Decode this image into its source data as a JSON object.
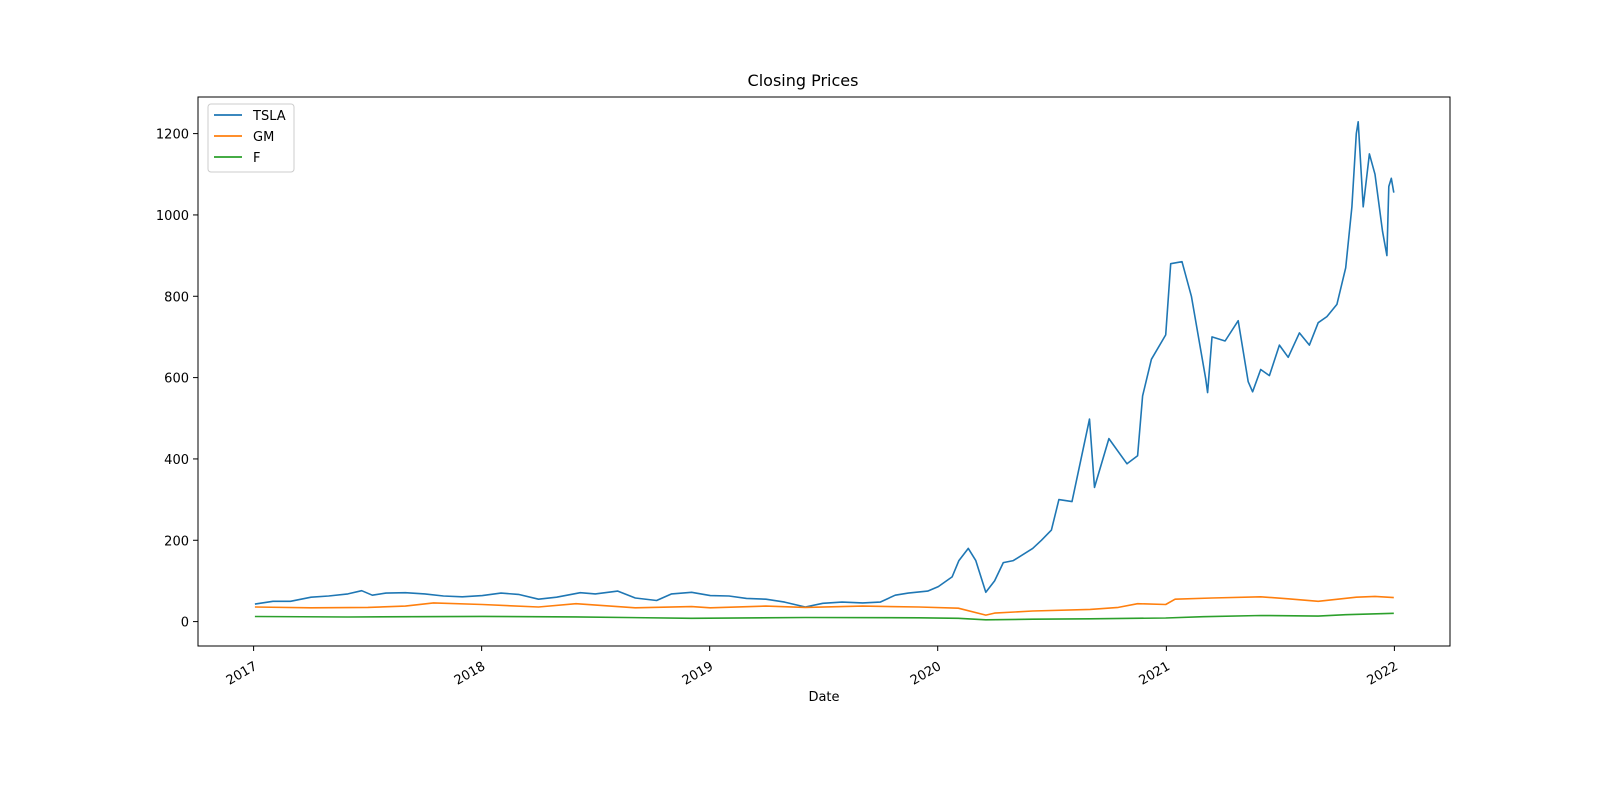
{
  "chart_data": {
    "type": "line",
    "title": "Closing Prices",
    "xlabel": "Date",
    "ylabel": "",
    "x_type": "date",
    "xlim": [
      "2016-10-04",
      "2022-03-31"
    ],
    "ylim": [
      -60,
      1290
    ],
    "x_ticks": [
      {
        "date": "2017-01-01",
        "label": "2017"
      },
      {
        "date": "2018-01-01",
        "label": "2018"
      },
      {
        "date": "2019-01-01",
        "label": "2019"
      },
      {
        "date": "2020-01-01",
        "label": "2020"
      },
      {
        "date": "2021-01-01",
        "label": "2021"
      },
      {
        "date": "2022-01-01",
        "label": "2022"
      }
    ],
    "y_ticks": [
      0,
      200,
      400,
      600,
      800,
      1000,
      1200
    ],
    "grid": false,
    "legend_position": "upper-left",
    "series": [
      {
        "name": "TSLA",
        "color": "#1f77b4",
        "points": [
          [
            "2017-01-03",
            43
          ],
          [
            "2017-02-01",
            50
          ],
          [
            "2017-03-01",
            50
          ],
          [
            "2017-04-03",
            60
          ],
          [
            "2017-05-01",
            63
          ],
          [
            "2017-06-01",
            68
          ],
          [
            "2017-06-23",
            76
          ],
          [
            "2017-07-10",
            65
          ],
          [
            "2017-08-01",
            70
          ],
          [
            "2017-09-01",
            71
          ],
          [
            "2017-10-02",
            68
          ],
          [
            "2017-11-01",
            63
          ],
          [
            "2017-12-01",
            61
          ],
          [
            "2018-01-02",
            64
          ],
          [
            "2018-02-01",
            70
          ],
          [
            "2018-03-01",
            67
          ],
          [
            "2018-04-02",
            55
          ],
          [
            "2018-05-01",
            60
          ],
          [
            "2018-06-08",
            71
          ],
          [
            "2018-07-02",
            68
          ],
          [
            "2018-08-07",
            75
          ],
          [
            "2018-09-04",
            58
          ],
          [
            "2018-10-08",
            52
          ],
          [
            "2018-11-01",
            68
          ],
          [
            "2018-12-03",
            72
          ],
          [
            "2019-01-02",
            64
          ],
          [
            "2019-02-01",
            63
          ],
          [
            "2019-03-01",
            57
          ],
          [
            "2019-04-01",
            55
          ],
          [
            "2019-05-01",
            48
          ],
          [
            "2019-06-03",
            36
          ],
          [
            "2019-07-01",
            45
          ],
          [
            "2019-08-01",
            48
          ],
          [
            "2019-09-03",
            46
          ],
          [
            "2019-10-01",
            48
          ],
          [
            "2019-10-25",
            65
          ],
          [
            "2019-11-15",
            70
          ],
          [
            "2019-12-16",
            75
          ],
          [
            "2020-01-02",
            86
          ],
          [
            "2020-01-24",
            110
          ],
          [
            "2020-02-04",
            150
          ],
          [
            "2020-02-19",
            180
          ],
          [
            "2020-03-02",
            150
          ],
          [
            "2020-03-18",
            72
          ],
          [
            "2020-04-01",
            100
          ],
          [
            "2020-04-15",
            145
          ],
          [
            "2020-05-01",
            150
          ],
          [
            "2020-06-01",
            180
          ],
          [
            "2020-06-15",
            200
          ],
          [
            "2020-07-01",
            225
          ],
          [
            "2020-07-13",
            300
          ],
          [
            "2020-08-03",
            295
          ],
          [
            "2020-08-31",
            498
          ],
          [
            "2020-09-08",
            330
          ],
          [
            "2020-10-01",
            450
          ],
          [
            "2020-10-30",
            388
          ],
          [
            "2020-11-16",
            408
          ],
          [
            "2020-11-24",
            555
          ],
          [
            "2020-12-08",
            645
          ],
          [
            "2020-12-31",
            705
          ],
          [
            "2021-01-08",
            880
          ],
          [
            "2021-01-26",
            885
          ],
          [
            "2021-02-10",
            800
          ],
          [
            "2021-03-05",
            597
          ],
          [
            "2021-03-08",
            563
          ],
          [
            "2021-03-15",
            700
          ],
          [
            "2021-04-05",
            690
          ],
          [
            "2021-04-26",
            740
          ],
          [
            "2021-05-12",
            590
          ],
          [
            "2021-05-19",
            565
          ],
          [
            "2021-06-01",
            620
          ],
          [
            "2021-06-15",
            605
          ],
          [
            "2021-07-01",
            680
          ],
          [
            "2021-07-15",
            650
          ],
          [
            "2021-08-02",
            710
          ],
          [
            "2021-08-18",
            680
          ],
          [
            "2021-09-01",
            735
          ],
          [
            "2021-09-15",
            750
          ],
          [
            "2021-10-01",
            780
          ],
          [
            "2021-10-15",
            870
          ],
          [
            "2021-10-25",
            1020
          ],
          [
            "2021-11-01",
            1200
          ],
          [
            "2021-11-04",
            1229
          ],
          [
            "2021-11-12",
            1020
          ],
          [
            "2021-11-22",
            1150
          ],
          [
            "2021-12-01",
            1100
          ],
          [
            "2021-12-13",
            960
          ],
          [
            "2021-12-20",
            900
          ],
          [
            "2021-12-23",
            1070
          ],
          [
            "2021-12-27",
            1090
          ],
          [
            "2021-12-31",
            1055
          ]
        ]
      },
      {
        "name": "GM",
        "color": "#ff7f0e",
        "points": [
          [
            "2017-01-03",
            36
          ],
          [
            "2017-04-03",
            34
          ],
          [
            "2017-07-03",
            35
          ],
          [
            "2017-09-01",
            38
          ],
          [
            "2017-10-16",
            46
          ],
          [
            "2018-01-02",
            42
          ],
          [
            "2018-04-02",
            36
          ],
          [
            "2018-06-01",
            44
          ],
          [
            "2018-09-04",
            34
          ],
          [
            "2018-12-03",
            37
          ],
          [
            "2019-01-02",
            34
          ],
          [
            "2019-04-01",
            38
          ],
          [
            "2019-06-03",
            35
          ],
          [
            "2019-09-03",
            38
          ],
          [
            "2019-12-02",
            36
          ],
          [
            "2020-02-03",
            33
          ],
          [
            "2020-03-18",
            16
          ],
          [
            "2020-04-01",
            21
          ],
          [
            "2020-06-01",
            26
          ],
          [
            "2020-09-01",
            30
          ],
          [
            "2020-10-16",
            35
          ],
          [
            "2020-11-16",
            44
          ],
          [
            "2020-12-31",
            42
          ],
          [
            "2021-01-15",
            55
          ],
          [
            "2021-03-15",
            58
          ],
          [
            "2021-06-01",
            61
          ],
          [
            "2021-07-15",
            56
          ],
          [
            "2021-09-01",
            50
          ],
          [
            "2021-11-01",
            60
          ],
          [
            "2021-12-01",
            62
          ],
          [
            "2021-12-31",
            59
          ]
        ]
      },
      {
        "name": "F",
        "color": "#2ca02c",
        "points": [
          [
            "2017-01-03",
            12.6
          ],
          [
            "2017-06-01",
            11.2
          ],
          [
            "2018-01-02",
            12.7
          ],
          [
            "2018-06-01",
            11.5
          ],
          [
            "2018-12-03",
            8
          ],
          [
            "2019-06-03",
            10
          ],
          [
            "2019-12-02",
            9.3
          ],
          [
            "2020-02-03",
            8
          ],
          [
            "2020-03-18",
            4.5
          ],
          [
            "2020-06-01",
            6
          ],
          [
            "2020-09-01",
            7
          ],
          [
            "2020-12-31",
            8.8
          ],
          [
            "2021-03-01",
            12
          ],
          [
            "2021-06-01",
            15
          ],
          [
            "2021-09-01",
            13.5
          ],
          [
            "2021-10-15",
            17
          ],
          [
            "2021-12-31",
            20.5
          ]
        ]
      }
    ]
  }
}
